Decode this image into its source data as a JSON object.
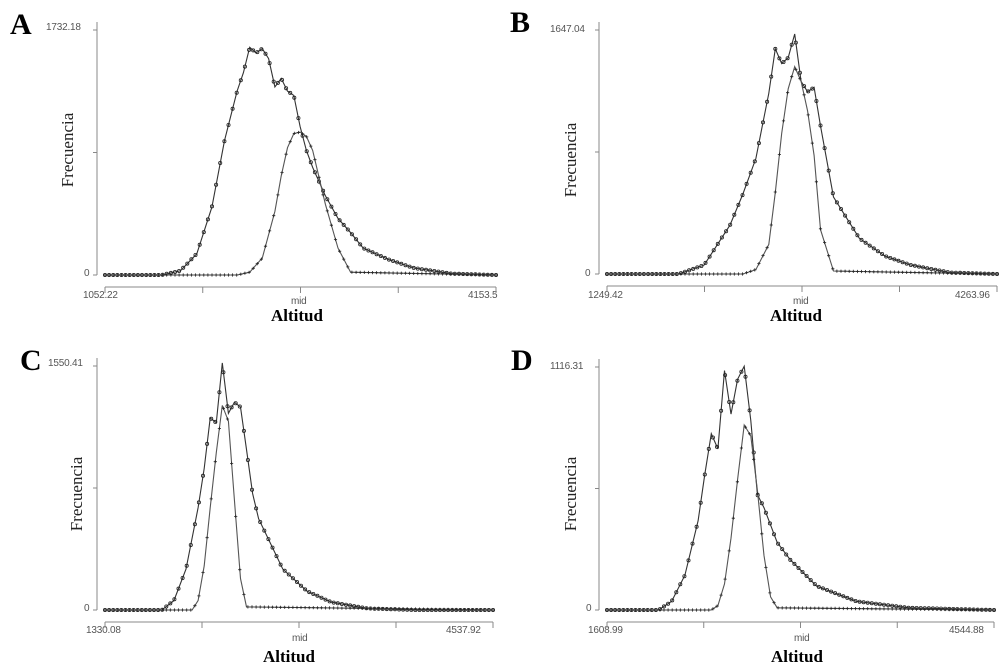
{
  "figure": {
    "ylabel": "Frecuencia",
    "xlabel": "Altitud",
    "x_mid_label": "mid"
  },
  "chart_data": [
    {
      "panel": "A",
      "type": "line",
      "xlim": [
        1052.22,
        4153.5
      ],
      "ylim": [
        0,
        1732.18
      ],
      "y_ticks": [
        "1732.18",
        "0"
      ],
      "x_ticks": [
        "1052.22",
        "mid",
        "4153.5"
      ],
      "xlabel": "Altitud",
      "ylabel": "Frecuencia",
      "series": [
        {
          "marker": "circle",
          "x": [
            1052.22,
            1500,
            1650,
            1780,
            1900,
            2000,
            2100,
            2150,
            2200,
            2250,
            2300,
            2350,
            2400,
            2450,
            2500,
            2550,
            2600,
            2650,
            2700,
            2800,
            2900,
            3000,
            3100,
            3300,
            3500,
            3800,
            4153.5
          ],
          "y": [
            0,
            0,
            30,
            150,
            480,
            950,
            1300,
            1430,
            1610,
            1570,
            1600,
            1530,
            1330,
            1390,
            1300,
            1270,
            1050,
            880,
            760,
            560,
            400,
            300,
            190,
            110,
            50,
            10,
            0
          ]
        },
        {
          "marker": "plus",
          "x": [
            1052.22,
            1900,
            2000,
            2100,
            2200,
            2300,
            2400,
            2450,
            2500,
            2550,
            2600,
            2650,
            2700,
            2800,
            2900,
            3000,
            4153.5
          ],
          "y": [
            0,
            0,
            0,
            0,
            20,
            120,
            450,
            700,
            900,
            1000,
            1010,
            980,
            880,
            500,
            190,
            20,
            0
          ]
        }
      ]
    },
    {
      "panel": "B",
      "type": "line",
      "xlim": [
        1249.42,
        4263.96
      ],
      "ylim": [
        0,
        1647.04
      ],
      "y_ticks": [
        "1647.04",
        "0"
      ],
      "x_ticks": [
        "1249.42",
        "mid",
        "4263.96"
      ],
      "xlabel": "Altitud",
      "ylabel": "Frecuencia",
      "series": [
        {
          "marker": "circle",
          "x": [
            1249.42,
            1800,
            2000,
            2200,
            2300,
            2400,
            2450,
            2500,
            2550,
            2600,
            2650,
            2700,
            2750,
            2800,
            2850,
            2900,
            3000,
            3100,
            3200,
            3400,
            3600,
            3900,
            4263.96
          ],
          "y": [
            0,
            0,
            60,
            330,
            540,
            780,
            1000,
            1220,
            1520,
            1420,
            1460,
            1620,
            1300,
            1230,
            1260,
            1000,
            520,
            380,
            240,
            120,
            60,
            10,
            0
          ]
        },
        {
          "marker": "plus",
          "x": [
            1249.42,
            2300,
            2400,
            2500,
            2550,
            2600,
            2650,
            2700,
            2750,
            2800,
            2850,
            2900,
            3000,
            4263.96
          ],
          "y": [
            0,
            0,
            30,
            200,
            550,
            950,
            1250,
            1400,
            1300,
            1100,
            800,
            300,
            20,
            0
          ]
        }
      ]
    },
    {
      "panel": "C",
      "type": "line",
      "xlim": [
        1330.08,
        4537.92
      ],
      "ylim": [
        0,
        1550.41
      ],
      "y_ticks": [
        "1550.41",
        "0"
      ],
      "x_ticks": [
        "1330.08",
        "mid",
        "4537.92"
      ],
      "xlabel": "Altitud",
      "ylabel": "Frecuencia",
      "series": [
        {
          "marker": "circle",
          "x": [
            1330.08,
            1800,
            1900,
            2000,
            2100,
            2150,
            2200,
            2250,
            2300,
            2350,
            2400,
            2450,
            2500,
            2550,
            2600,
            2700,
            2800,
            3000,
            3200,
            3500,
            3900,
            4537.92
          ],
          "y": [
            0,
            0,
            60,
            260,
            650,
            900,
            1220,
            1190,
            1570,
            1250,
            1320,
            1290,
            1020,
            740,
            580,
            420,
            260,
            120,
            50,
            10,
            0,
            0
          ]
        },
        {
          "marker": "plus",
          "x": [
            1330.08,
            2050,
            2100,
            2150,
            2200,
            2250,
            2300,
            2350,
            2400,
            2450,
            2500,
            4537.92
          ],
          "y": [
            0,
            0,
            60,
            280,
            650,
            1000,
            1300,
            1200,
            700,
            200,
            20,
            0
          ]
        }
      ]
    },
    {
      "panel": "D",
      "type": "line",
      "xlim": [
        1608.99,
        4544.88
      ],
      "ylim": [
        0,
        1116.31
      ],
      "y_ticks": [
        "1116.31",
        "0"
      ],
      "x_ticks": [
        "1608.99",
        "mid",
        "4544.88"
      ],
      "xlabel": "Altitud",
      "ylabel": "Frecuencia",
      "series": [
        {
          "marker": "circle",
          "x": [
            1608.99,
            2000,
            2100,
            2200,
            2300,
            2350,
            2400,
            2450,
            2500,
            2550,
            2600,
            2650,
            2700,
            2750,
            2800,
            2900,
            3000,
            3200,
            3500,
            3900,
            4544.88
          ],
          "y": [
            0,
            0,
            40,
            160,
            410,
            620,
            810,
            740,
            1100,
            900,
            1060,
            1120,
            870,
            530,
            470,
            310,
            230,
            110,
            40,
            10,
            0
          ]
        },
        {
          "marker": "plus",
          "x": [
            1608.99,
            2400,
            2450,
            2500,
            2550,
            2600,
            2650,
            2700,
            2750,
            2800,
            2850,
            2900,
            4544.88
          ],
          "y": [
            0,
            0,
            20,
            120,
            330,
            600,
            850,
            800,
            550,
            250,
            60,
            10,
            0
          ]
        }
      ]
    }
  ]
}
